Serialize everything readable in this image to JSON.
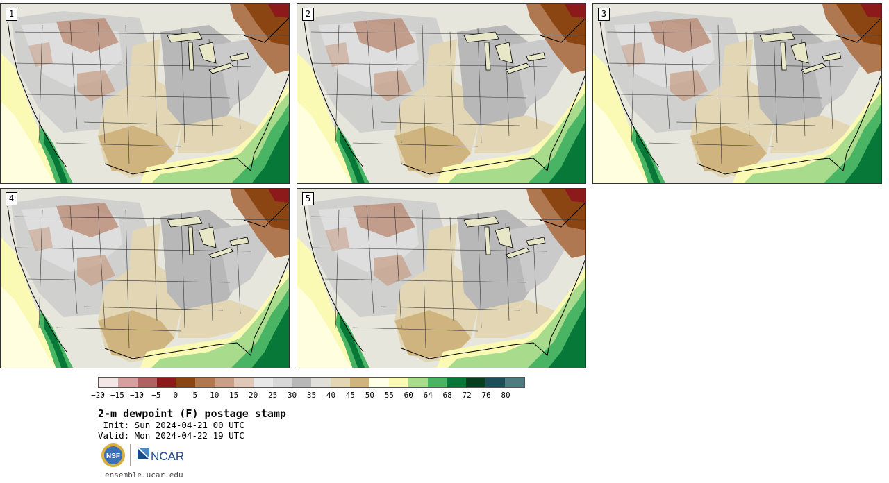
{
  "panels": [
    {
      "label": "1"
    },
    {
      "label": "2"
    },
    {
      "label": "3"
    },
    {
      "label": "4"
    },
    {
      "label": "5"
    }
  ],
  "colorbar": {
    "colors": [
      "#f2e6e6",
      "#d4a0a0",
      "#b06060",
      "#8c1a1a",
      "#8b4513",
      "#b07850",
      "#c8a088",
      "#e0c8b8",
      "#e8e8e8",
      "#d8d8d8",
      "#b8b8b8",
      "#e0e0d8",
      "#e2d6b4",
      "#d0b480",
      "#ffffe8",
      "#fafab4",
      "#a8dc8c",
      "#48b464",
      "#087838",
      "#0a3c1e",
      "#204e58",
      "#4e7a80"
    ],
    "ticks": [
      "−20",
      "−15",
      "−10",
      "−5",
      "0",
      "5",
      "10",
      "15",
      "20",
      "25",
      "30",
      "35",
      "40",
      "45",
      "50",
      "55",
      "60",
      "64",
      "68",
      "72",
      "76",
      "80"
    ]
  },
  "title": "2-m dewpoint (F) postage stamp",
  "init": " Init: Sun 2024-04-21 00 UTC",
  "valid": "Valid: Mon 2024-04-22 19 UTC",
  "logos": {
    "nsf": "NSF",
    "ncar": "NCAR"
  },
  "url": "ensemble.ucar.edu"
}
